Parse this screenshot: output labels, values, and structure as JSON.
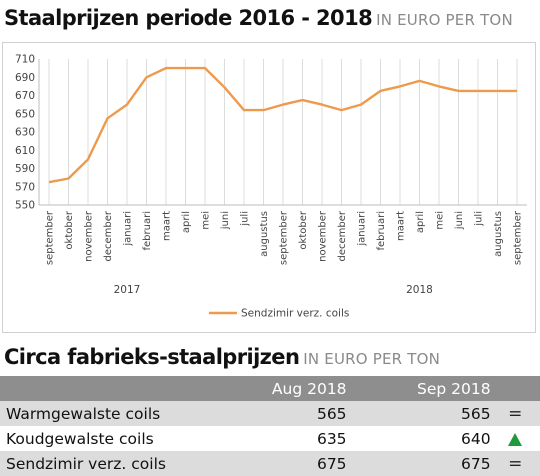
{
  "header": {
    "title": "Staalprijzen periode 2016 - 2018",
    "unit": "IN EURO PER TON"
  },
  "chart_data": {
    "type": "line",
    "categories": [
      "september",
      "oktober",
      "november",
      "december",
      "januari",
      "februari",
      "maart",
      "april",
      "mei",
      "juni",
      "juli",
      "augustus",
      "september",
      "oktober",
      "november",
      "december",
      "januari",
      "februari",
      "maart",
      "april",
      "mei",
      "juni",
      "juli",
      "augustus",
      "september"
    ],
    "year_labels": [
      {
        "label": "2017",
        "category_index": 4
      },
      {
        "label": "2018",
        "category_index": 19
      }
    ],
    "series": [
      {
        "name": "Sendzimir verz. coils",
        "color": "#ee9a4d",
        "values": [
          575,
          579,
          600,
          645,
          660,
          690,
          700,
          700,
          700,
          679,
          654,
          654,
          660,
          665,
          660,
          654,
          660,
          675,
          680,
          686,
          680,
          675,
          675,
          675,
          675
        ]
      }
    ],
    "ylim": [
      550,
      710
    ],
    "yticks": [
      550,
      570,
      590,
      610,
      630,
      650,
      670,
      690,
      710
    ],
    "grid": "vertical",
    "legend": "bottom"
  },
  "table": {
    "title": "Circa fabrieks-staalprijzen",
    "unit": "IN EURO PER TON",
    "columns": [
      "",
      "Aug 2018",
      "Sep 2018",
      ""
    ],
    "rows": [
      {
        "name": "Warmgewalste coils",
        "aug": "565",
        "sep": "565",
        "indicator": "equal",
        "indicator_text": "="
      },
      {
        "name": "Koudgewalste coils",
        "aug": "635",
        "sep": "640",
        "indicator": "up",
        "indicator_text": ""
      },
      {
        "name": "Sendzimir verz. coils",
        "aug": "675",
        "sep": "675",
        "indicator": "equal",
        "indicator_text": "="
      }
    ]
  }
}
